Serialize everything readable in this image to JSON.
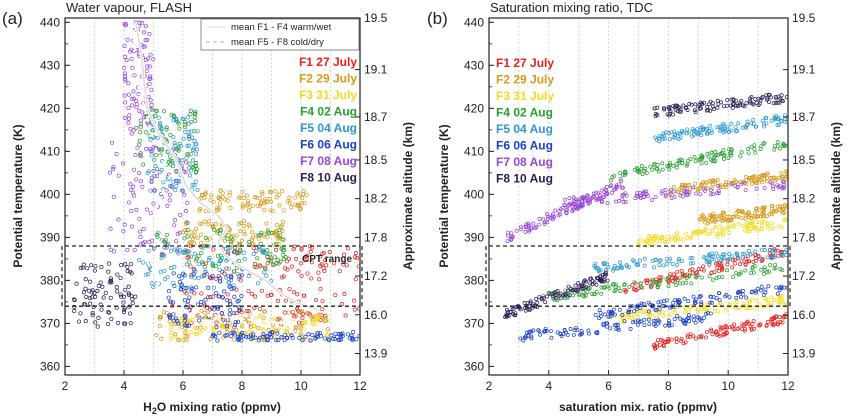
{
  "chart_data": [
    {
      "panel_label": "(a)",
      "type": "scatter",
      "title": "Water vapour, FLASH",
      "xlabel_parts": [
        "H",
        "2",
        "O mixing ratio (ppmv)"
      ],
      "ylabel": "Potential temperature (K)",
      "y2label": "Approximate altitude (km)",
      "xlim": [
        2,
        12
      ],
      "ylim": [
        358,
        441
      ],
      "xticks": [
        "2",
        "4",
        "6",
        "8",
        "10",
        "12"
      ],
      "yticks": [
        "360",
        "370",
        "380",
        "390",
        "400",
        "410",
        "420",
        "430",
        "440"
      ],
      "y2ticks": [
        {
          "theta": 363,
          "label": "13.9"
        },
        {
          "theta": 372,
          "label": "16.0"
        },
        {
          "theta": 381,
          "label": "17.2"
        },
        {
          "theta": 390,
          "label": "17.8"
        },
        {
          "theta": 399,
          "label": "18.2"
        },
        {
          "theta": 408,
          "label": "18.5"
        },
        {
          "theta": 418,
          "label": "18.7"
        },
        {
          "theta": 429,
          "label": "19.1"
        },
        {
          "theta": 441,
          "label": "19.5"
        }
      ],
      "annotation": "CPT range",
      "cpt_range": [
        374,
        388
      ],
      "legend": [
        "mean F1 - F4 warm/wet",
        "mean F5 - F8 cold/dry"
      ],
      "mean_warm": [
        [
          4.4,
          440
        ],
        [
          4.6,
          432
        ],
        [
          4.7,
          425
        ],
        [
          4.8,
          420
        ],
        [
          5.1,
          415
        ],
        [
          5.6,
          410
        ],
        [
          5.9,
          406
        ],
        [
          6.1,
          402
        ],
        [
          6.6,
          398
        ],
        [
          7.2,
          395
        ],
        [
          7.5,
          392
        ],
        [
          7.2,
          389
        ],
        [
          7.4,
          386
        ],
        [
          8.0,
          383
        ],
        [
          8.8,
          380
        ],
        [
          9.3,
          377
        ],
        [
          9.8,
          375
        ],
        [
          10.6,
          373
        ]
      ],
      "mean_cold": [
        [
          4.3,
          440
        ],
        [
          4.4,
          432
        ],
        [
          4.5,
          425
        ],
        [
          4.7,
          420
        ],
        [
          4.9,
          415
        ],
        [
          5.1,
          410
        ],
        [
          5.6,
          405
        ],
        [
          5.3,
          400
        ],
        [
          5.0,
          396
        ],
        [
          5.1,
          393
        ],
        [
          5.3,
          390
        ],
        [
          5.1,
          387
        ],
        [
          4.8,
          384
        ],
        [
          5.2,
          380
        ],
        [
          5.0,
          377
        ],
        [
          5.6,
          374
        ],
        [
          6.6,
          372
        ],
        [
          8.0,
          371
        ],
        [
          9.5,
          370
        ]
      ]
    },
    {
      "panel_label": "(b)",
      "type": "scatter",
      "title": "Saturation mixing ratio, TDC",
      "xlabel": "saturation mix. ratio (ppmv)",
      "ylabel": "Potential temperature (K)",
      "y2label": "Approximate altitude (km)",
      "xlim": [
        2,
        12
      ],
      "ylim": [
        358,
        441
      ],
      "xticks": [
        "2",
        "4",
        "6",
        "8",
        "10",
        "12"
      ],
      "yticks": [
        "360",
        "370",
        "380",
        "390",
        "400",
        "410",
        "420",
        "430",
        "440"
      ],
      "y2ticks": [
        {
          "theta": 363,
          "label": "13.9"
        },
        {
          "theta": 372,
          "label": "16.0"
        },
        {
          "theta": 381,
          "label": "17.2"
        },
        {
          "theta": 390,
          "label": "17.8"
        },
        {
          "theta": 399,
          "label": "18.2"
        },
        {
          "theta": 408,
          "label": "18.5"
        },
        {
          "theta": 418,
          "label": "18.7"
        },
        {
          "theta": 429,
          "label": "19.1"
        },
        {
          "theta": 441,
          "label": "19.5"
        }
      ],
      "cpt_range": [
        374,
        388
      ]
    }
  ],
  "flights": [
    {
      "label": "F1 27 July",
      "color": "#e8221f",
      "band_a": [
        [
          5.5,
          12,
          369,
          378
        ],
        [
          6.0,
          12,
          380,
          388
        ]
      ],
      "bands_b": [
        [
          6.5,
          12,
          378,
          388
        ],
        [
          7.5,
          12,
          365,
          372
        ]
      ],
      "dots_a": [],
      "dots_b": []
    },
    {
      "label": "F2 29 July",
      "color": "#d79a1b",
      "band_a": [
        [
          6.5,
          10.2,
          396,
          401
        ],
        [
          6.0,
          9.5,
          388,
          394
        ],
        [
          5.0,
          11,
          366,
          373
        ]
      ],
      "bands_b": [
        [
          8.0,
          12,
          401,
          405
        ],
        [
          9.0,
          12,
          394,
          397
        ]
      ],
      "dots_a": [],
      "dots_b": []
    },
    {
      "label": "F3 31 July",
      "color": "#f0dc1c",
      "band_a": [
        [
          5.5,
          11,
          366,
          372
        ]
      ],
      "bands_b": [
        [
          7.0,
          12,
          389,
          394
        ],
        [
          6.0,
          12,
          371,
          376
        ]
      ],
      "dots_a": [],
      "dots_b": []
    },
    {
      "label": "F4 02 Aug",
      "color": "#26a12e",
      "band_a": [
        [
          5.0,
          9.5,
          382,
          392
        ],
        [
          4.5,
          6.5,
          405,
          420
        ]
      ],
      "bands_b": [
        [
          6.0,
          12,
          404,
          413
        ],
        [
          3.8,
          12,
          376,
          384
        ]
      ],
      "dots_a": [],
      "dots_b": []
    },
    {
      "label": "F5 04 Aug",
      "color": "#2c98d3",
      "band_a": [
        [
          4.5,
          9.0,
          378,
          388
        ],
        [
          4.8,
          6.5,
          400,
          418
        ]
      ],
      "bands_b": [
        [
          7.5,
          12,
          413,
          418
        ],
        [
          5.5,
          12,
          383,
          387
        ]
      ],
      "dots_a": [],
      "dots_b": []
    },
    {
      "label": "F6 06 Aug",
      "color": "#1a41d0",
      "band_a": [
        [
          5.5,
          8.0,
          369,
          382
        ],
        [
          7.0,
          12,
          366,
          368
        ]
      ],
      "bands_b": [
        [
          5.5,
          12,
          372,
          379
        ],
        [
          3.0,
          9.5,
          367,
          372
        ]
      ],
      "dots_a": [],
      "dots_b": []
    },
    {
      "label": "F7 08 Aug",
      "color": "#9846d8",
      "band_a": [
        [
          3.5,
          6.2,
          386,
          412
        ],
        [
          4.0,
          5.0,
          414,
          440
        ]
      ],
      "bands_b": [
        [
          2.6,
          6.5,
          390,
          404
        ],
        [
          4.5,
          12,
          398,
          403
        ]
      ],
      "dots_a": [],
      "dots_b": []
    },
    {
      "label": "F8 10 Aug",
      "color": "#2e1c56",
      "band_a": [
        [
          2.3,
          4.4,
          369,
          384
        ]
      ],
      "bands_b": [
        [
          2.5,
          6.0,
          372,
          382
        ],
        [
          7.5,
          12,
          419,
          423
        ]
      ],
      "dots_a": [],
      "dots_b": []
    }
  ]
}
